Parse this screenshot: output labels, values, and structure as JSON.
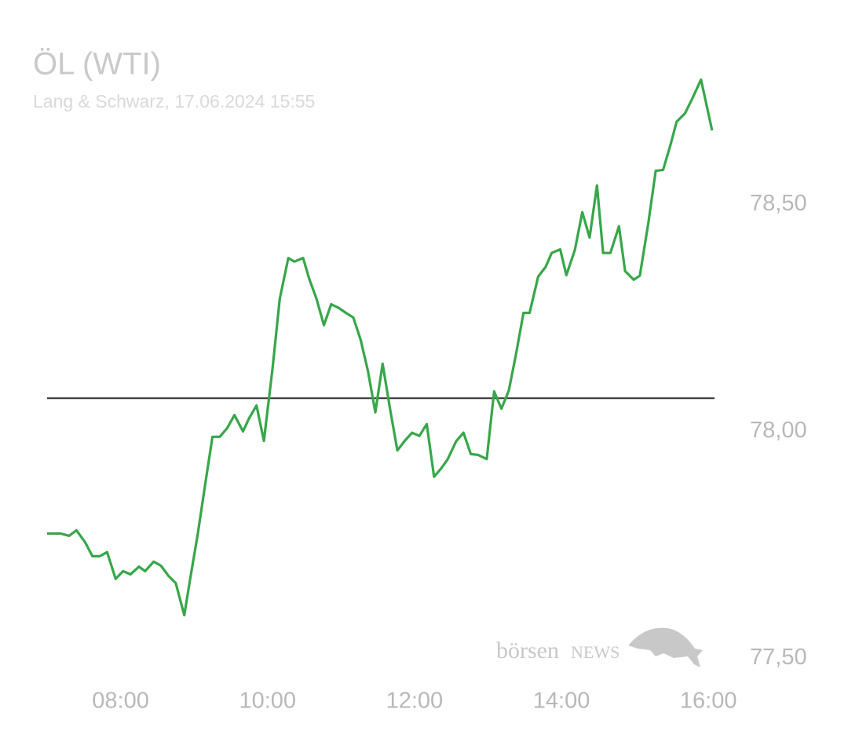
{
  "chart_data": {
    "type": "line",
    "title": "ÖL (WTI)",
    "subtitle": "Lang & Schwarz, 17.06.2024 15:55",
    "watermark": {
      "prefix": "börsen",
      "suffix": "NEWS"
    },
    "color": "#38a64a",
    "reference_line": 78.073,
    "reference_color": "#3c3c3c",
    "x": [
      "07:00",
      "07:11",
      "07:18",
      "07:24",
      "07:31",
      "07:37",
      "07:43",
      "07:49",
      "07:56",
      "08:02",
      "08:08",
      "08:15",
      "08:20",
      "08:27",
      "08:33",
      "08:39",
      "08:45",
      "08:52",
      "08:57",
      "09:03",
      "09:09",
      "09:15",
      "09:21",
      "09:27",
      "09:33",
      "09:40",
      "09:45",
      "09:51",
      "09:57",
      "10:04",
      "10:10",
      "10:17",
      "10:22",
      "10:29",
      "10:34",
      "10:40",
      "10:46",
      "10:52",
      "10:58",
      "11:04",
      "11:10",
      "11:16",
      "11:22",
      "11:28",
      "11:34",
      "11:40",
      "11:46",
      "11:52",
      "11:58",
      "12:04",
      "12:10",
      "12:16",
      "12:22",
      "12:27",
      "12:34",
      "12:40",
      "12:46",
      "12:52",
      "12:59",
      "13:05",
      "13:11",
      "13:17",
      "13:23",
      "13:29",
      "13:34",
      "13:41",
      "13:47",
      "13:52",
      "13:59",
      "14:04",
      "14:11",
      "14:17",
      "14:23",
      "14:29",
      "14:34",
      "14:40",
      "14:47",
      "14:52",
      "14:59",
      "15:04",
      "15:11",
      "15:17",
      "15:23",
      "15:29",
      "15:34",
      "15:41",
      "15:47",
      "15:54",
      "16:03"
    ],
    "values": [
      77.775,
      77.775,
      77.77,
      77.782,
      77.756,
      77.725,
      77.725,
      77.734,
      77.675,
      77.692,
      77.685,
      77.702,
      77.692,
      77.713,
      77.704,
      77.682,
      77.666,
      77.595,
      77.678,
      77.773,
      77.882,
      77.988,
      77.988,
      78.007,
      78.036,
      78.0,
      78.029,
      78.057,
      77.979,
      78.137,
      78.292,
      78.382,
      78.374,
      78.382,
      78.336,
      78.292,
      78.234,
      78.28,
      78.272,
      78.261,
      78.251,
      78.202,
      78.133,
      78.042,
      78.149,
      78.05,
      77.958,
      77.979,
      77.997,
      77.99,
      78.016,
      77.9,
      77.919,
      77.938,
      77.978,
      77.997,
      77.95,
      77.948,
      77.939,
      78.088,
      78.05,
      78.09,
      78.171,
      78.261,
      78.261,
      78.341,
      78.362,
      78.393,
      78.401,
      78.344,
      78.4,
      78.483,
      78.427,
      78.542,
      78.393,
      78.393,
      78.452,
      78.353,
      78.334,
      78.343,
      78.46,
      78.574,
      78.576,
      78.631,
      78.682,
      78.701,
      78.734,
      78.775,
      78.663
    ],
    "xlim": [
      "07:00",
      "16:05"
    ],
    "xticks": [
      "08:00",
      "10:00",
      "12:00",
      "14:00",
      "16:00"
    ],
    "ylim": [
      77.48,
      78.85
    ],
    "yticks": [
      {
        "value": 77.5,
        "label": "77,50"
      },
      {
        "value": 78.0,
        "label": "78,00"
      },
      {
        "value": 78.5,
        "label": "78,50"
      }
    ]
  }
}
